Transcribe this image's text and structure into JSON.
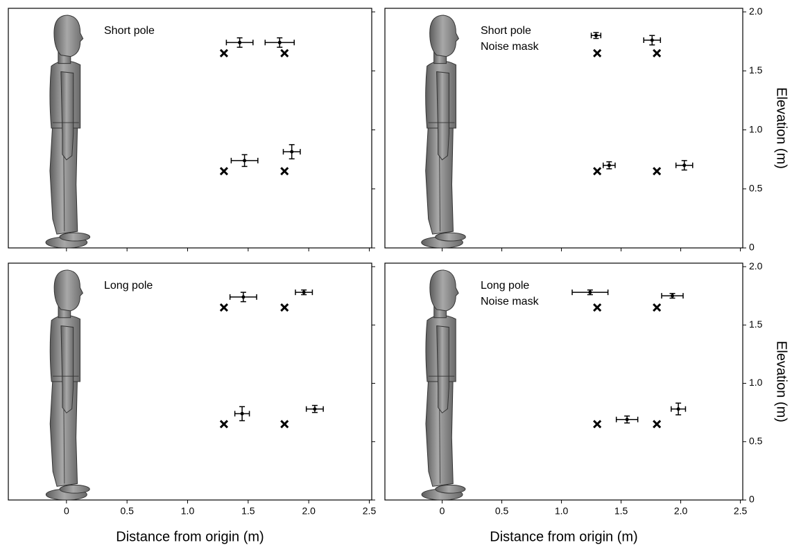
{
  "chart_data": [
    {
      "type": "scatter",
      "title": "Short pole",
      "xlim": [
        -0.48,
        2.52
      ],
      "ylim": [
        0,
        2.03
      ],
      "xticks": [
        0,
        0.5,
        1.0,
        1.5,
        2.0,
        2.5
      ],
      "yticks": [
        0,
        0.5,
        1.0,
        1.5,
        2.0
      ],
      "xtick_labels": false,
      "ytick_labels": false,
      "series": [
        {
          "marker": "x",
          "color": "#000000",
          "x": [
            1.3,
            1.8,
            1.3,
            1.8
          ],
          "values": [
            1.65,
            1.65,
            0.65,
            0.65
          ]
        },
        {
          "marker": "errorbar",
          "color": "#000000",
          "x": [
            1.43,
            1.76,
            1.47,
            1.86
          ],
          "values": [
            1.74,
            1.74,
            0.74,
            0.815
          ],
          "xerr": [
            0.11,
            0.12,
            0.11,
            0.07
          ],
          "yerr": [
            0.04,
            0.04,
            0.05,
            0.06
          ]
        }
      ]
    },
    {
      "type": "scatter",
      "title": "Short pole",
      "subtitle": "Noise mask",
      "ylabel": "Elevation (m)",
      "xlim": [
        -0.48,
        2.52
      ],
      "ylim": [
        0,
        2.03
      ],
      "xticks": [
        0,
        0.5,
        1.0,
        1.5,
        2.0,
        2.5
      ],
      "yticks": [
        0,
        0.5,
        {
          "value": 1.0,
          "label": "1.0"
        },
        1.5,
        {
          "value": 2.0,
          "label": "2.0"
        }
      ],
      "xtick_labels": false,
      "ytick_labels": true,
      "series": [
        {
          "marker": "x",
          "color": "#000000",
          "x": [
            1.3,
            1.8,
            1.3,
            1.8
          ],
          "values": [
            1.65,
            1.65,
            0.65,
            0.65
          ]
        },
        {
          "marker": "errorbar",
          "color": "#000000",
          "x": [
            1.29,
            1.76,
            1.4,
            2.03
          ],
          "values": [
            1.8,
            1.76,
            0.7,
            0.7
          ],
          "xerr": [
            0.04,
            0.07,
            0.05,
            0.07
          ],
          "yerr": [
            0.025,
            0.04,
            0.03,
            0.04
          ]
        }
      ]
    },
    {
      "type": "scatter",
      "title": "Long pole",
      "xlabel": "Distance from origin (m)",
      "xlim": [
        -0.48,
        2.52
      ],
      "ylim": [
        0,
        2.03
      ],
      "xticks": [
        0,
        0.5,
        {
          "value": 1.0,
          "label": "1.0"
        },
        1.5,
        {
          "value": 2.0,
          "label": "2.0"
        },
        2.5
      ],
      "yticks": [
        0,
        0.5,
        1.0,
        1.5,
        2.0
      ],
      "xtick_labels": true,
      "ytick_labels": false,
      "series": [
        {
          "marker": "x",
          "color": "#000000",
          "x": [
            1.3,
            1.8,
            1.3,
            1.8
          ],
          "values": [
            1.65,
            1.65,
            0.65,
            0.65
          ]
        },
        {
          "marker": "errorbar",
          "color": "#000000",
          "x": [
            1.46,
            1.96,
            1.45,
            2.05
          ],
          "values": [
            1.74,
            1.78,
            0.74,
            0.78
          ],
          "xerr": [
            0.11,
            0.07,
            0.06,
            0.07
          ],
          "yerr": [
            0.04,
            0.02,
            0.06,
            0.03
          ]
        }
      ]
    },
    {
      "type": "scatter",
      "title": "Long pole",
      "subtitle": "Noise mask",
      "xlabel": "Distance from origin (m)",
      "ylabel": "Elevation (m)",
      "xlim": [
        -0.48,
        2.52
      ],
      "ylim": [
        0,
        2.03
      ],
      "xticks": [
        0,
        0.5,
        {
          "value": 1.0,
          "label": "1.0"
        },
        1.5,
        {
          "value": 2.0,
          "label": "2.0"
        },
        2.5
      ],
      "yticks": [
        0,
        0.5,
        {
          "value": 1.0,
          "label": "1.0"
        },
        1.5,
        {
          "value": 2.0,
          "label": "2.0"
        }
      ],
      "xtick_labels": true,
      "ytick_labels": true,
      "series": [
        {
          "marker": "x",
          "color": "#000000",
          "x": [
            1.3,
            1.8,
            1.3,
            1.8
          ],
          "values": [
            1.65,
            1.65,
            0.65,
            0.65
          ]
        },
        {
          "marker": "errorbar",
          "color": "#000000",
          "x": [
            1.24,
            1.93,
            1.55,
            1.98
          ],
          "values": [
            1.78,
            1.75,
            0.69,
            0.78
          ],
          "xerr": [
            0.15,
            0.09,
            0.09,
            0.06
          ],
          "yerr": [
            0.02,
            0.02,
            0.03,
            0.05
          ]
        }
      ]
    }
  ]
}
